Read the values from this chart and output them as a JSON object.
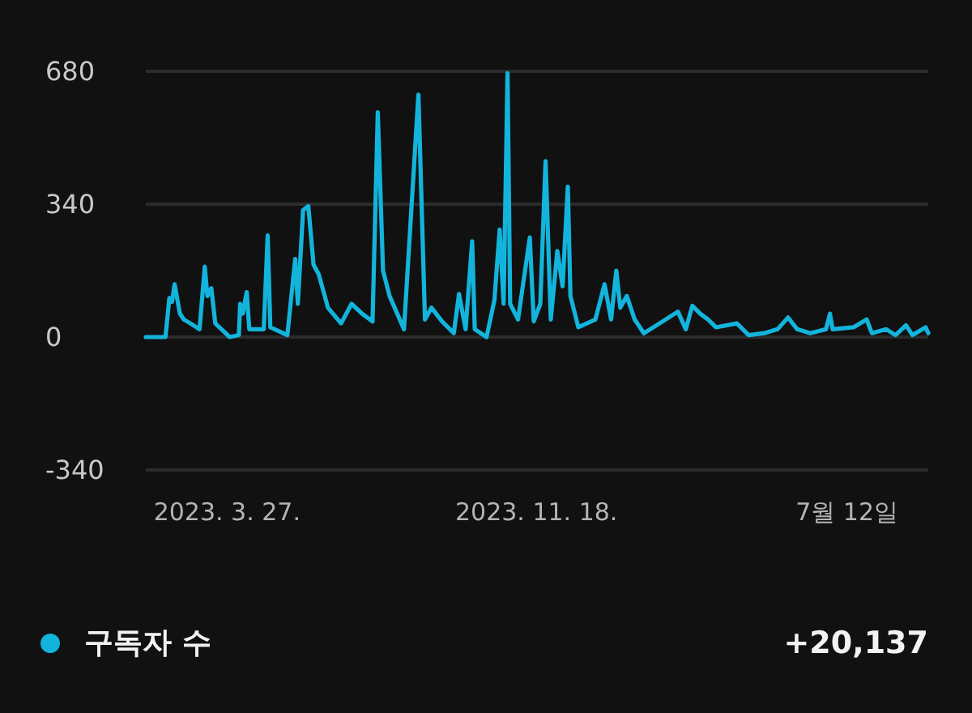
{
  "chart_data": {
    "type": "line",
    "x": [
      "2023-01-24",
      "2023-02-08",
      "2023-02-11",
      "2023-02-13",
      "2023-02-15",
      "2023-02-19",
      "2023-02-22",
      "2023-02-27",
      "2023-03-06",
      "2023-03-10",
      "2023-03-12",
      "2023-03-15",
      "2023-03-18",
      "2023-03-29",
      "2023-04-05",
      "2023-04-06",
      "2023-04-08",
      "2023-04-11",
      "2023-04-13",
      "2023-04-24",
      "2023-04-27",
      "2023-04-29",
      "2023-05-12",
      "2023-05-18",
      "2023-05-20",
      "2023-05-24",
      "2023-05-28",
      "2023-06-01",
      "2023-06-05",
      "2023-06-12",
      "2023-06-22",
      "2023-06-30",
      "2023-07-08",
      "2023-07-16",
      "2023-07-20",
      "2023-07-24",
      "2023-07-29",
      "2023-08-09",
      "2023-08-20",
      "2023-08-25",
      "2023-08-30",
      "2023-09-07",
      "2023-09-16",
      "2023-09-20",
      "2023-09-25",
      "2023-09-30",
      "2023-10-02",
      "2023-10-11",
      "2023-10-17",
      "2023-10-21",
      "2023-10-24",
      "2023-10-27",
      "2023-10-29",
      "2023-11-04",
      "2023-11-13",
      "2023-11-16",
      "2023-11-21",
      "2023-11-25",
      "2023-11-29",
      "2023-12-04",
      "2023-12-08",
      "2023-12-12",
      "2023-12-14",
      "2023-12-20",
      "2024-01-02",
      "2024-01-09",
      "2024-01-14",
      "2024-01-18",
      "2024-01-21",
      "2024-01-26",
      "2024-02-01",
      "2024-02-08",
      "2024-02-20",
      "2024-03-05",
      "2024-03-11",
      "2024-03-16",
      "2024-03-22",
      "2024-03-28",
      "2024-04-03",
      "2024-04-19",
      "2024-04-28",
      "2024-05-10",
      "2024-05-20",
      "2024-05-28",
      "2024-06-04",
      "2024-06-14",
      "2024-06-26",
      "2024-06-29",
      "2024-07-01",
      "2024-07-17",
      "2024-07-27",
      "2024-07-31",
      "2024-08-11",
      "2024-08-18",
      "2024-08-26",
      "2024-08-31",
      "2024-09-10",
      "2024-09-12"
    ],
    "series": [
      {
        "name": "구독자 수",
        "color": "#12b4dc",
        "values": [
          0,
          0,
          100,
          90,
          135,
          60,
          45,
          35,
          20,
          180,
          105,
          125,
          35,
          0,
          5,
          85,
          60,
          115,
          20,
          20,
          260,
          25,
          5,
          200,
          85,
          325,
          335,
          185,
          160,
          75,
          35,
          85,
          60,
          40,
          575,
          170,
          105,
          20,
          620,
          45,
          75,
          40,
          10,
          110,
          20,
          245,
          20,
          0,
          95,
          275,
          85,
          675,
          85,
          45,
          255,
          40,
          85,
          450,
          45,
          220,
          130,
          385,
          105,
          25,
          45,
          135,
          45,
          170,
          75,
          105,
          45,
          10,
          35,
          65,
          20,
          80,
          60,
          45,
          25,
          35,
          5,
          10,
          20,
          50,
          20,
          10,
          20,
          60,
          20,
          25,
          45,
          10,
          20,
          5,
          30,
          5,
          25,
          10
        ]
      }
    ],
    "xlim": [
      "2023-01-24",
      "2024-09-12"
    ],
    "xticks": [
      {
        "value": "2023-03-27",
        "label": "2023. 3. 27."
      },
      {
        "value": "2023-11-18",
        "label": "2023. 11. 18."
      },
      {
        "value": "2024-07-12",
        "label": "7월 12일"
      }
    ],
    "ylim": [
      -340,
      680
    ],
    "yticks": [
      -340,
      0,
      340,
      680
    ],
    "grid": "y",
    "legend": "bottom",
    "marker": "none",
    "line_style": "solid",
    "annotations": [
      "+20,137"
    ]
  }
}
